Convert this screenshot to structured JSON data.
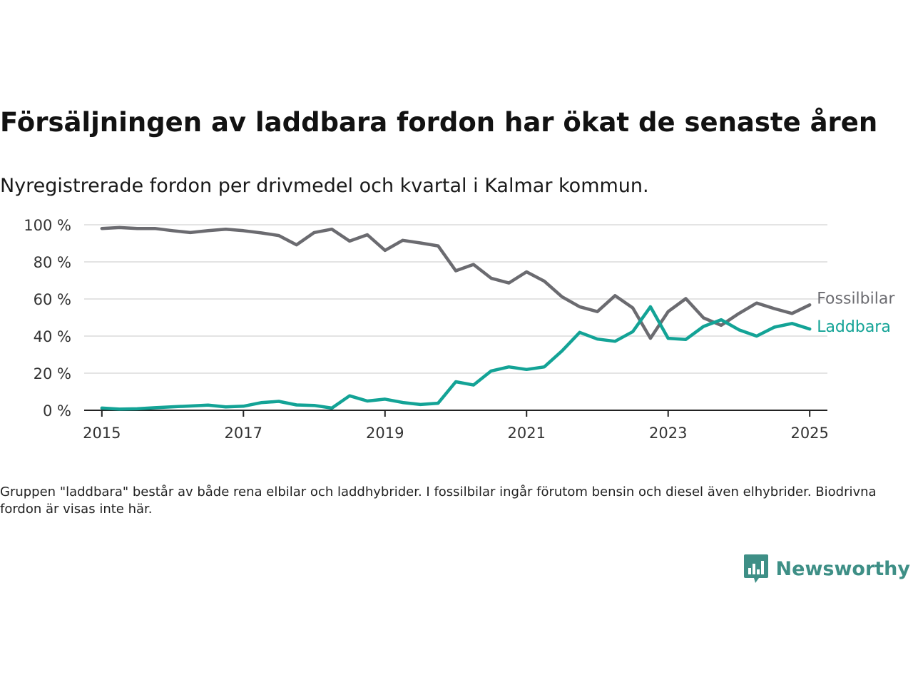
{
  "header": {
    "title": "Försäljningen av laddbara fordon har ökat de senaste åren",
    "subtitle": "Nyregistrerade fordon per drivmedel och kvartal i Kalmar kommun."
  },
  "footer": {
    "note": "Gruppen \"laddbara\" består av både rena elbilar och laddhybrider. I fossilbilar ingår förutom bensin och diesel även elhybrider. Biodrivna fordon är visas inte här.",
    "logo_text": "Newsworthy"
  },
  "chart_data": {
    "type": "line",
    "x_start_year": 2015,
    "x_step_years": 0.25,
    "xlim": [
      2014.75,
      2025.25
    ],
    "ylim": [
      0,
      100
    ],
    "y_ticks": [
      0,
      20,
      40,
      60,
      80,
      100
    ],
    "y_tick_labels": [
      "0 %",
      "20 %",
      "40 %",
      "60 %",
      "80 %",
      "100 %"
    ],
    "x_ticks": [
      2015,
      2017,
      2019,
      2021,
      2023,
      2025
    ],
    "x_tick_labels": [
      "2015",
      "2017",
      "2019",
      "2021",
      "2023",
      "2025"
    ],
    "grid": true,
    "legend": "inline-right",
    "series": [
      {
        "name": "Fossilbilar",
        "color": "#6b6b70",
        "values": [
          98,
          98.5,
          98,
          98,
          96.8,
          95.8,
          96.8,
          97.6,
          96.8,
          95.6,
          94.2,
          89.2,
          95.8,
          97.6,
          91.2,
          94.6,
          86.2,
          91.6,
          90.2,
          88.6,
          75.2,
          78.6,
          71.2,
          68.6,
          74.6,
          69.6,
          61.2,
          55.8,
          53.2,
          61.8,
          55.2,
          38.8,
          53.2,
          60.2,
          49.8,
          45.8,
          52.2,
          57.8,
          54.8,
          52.2,
          56.8
        ]
      },
      {
        "name": "Laddbara",
        "color": "#13a396",
        "values": [
          1.2,
          0.6,
          0.8,
          1.4,
          1.9,
          2.3,
          2.8,
          1.8,
          2.2,
          4.1,
          4.8,
          2.9,
          2.6,
          1.2,
          7.8,
          5.0,
          6.0,
          4.2,
          3.1,
          3.8,
          15.4,
          13.6,
          21.2,
          23.4,
          22.0,
          23.4,
          32.0,
          42.0,
          38.4,
          37.2,
          42.4,
          55.8,
          38.8,
          38.2,
          45.2,
          48.8,
          43.4,
          40.0,
          44.8,
          46.8,
          43.8
        ]
      }
    ]
  }
}
